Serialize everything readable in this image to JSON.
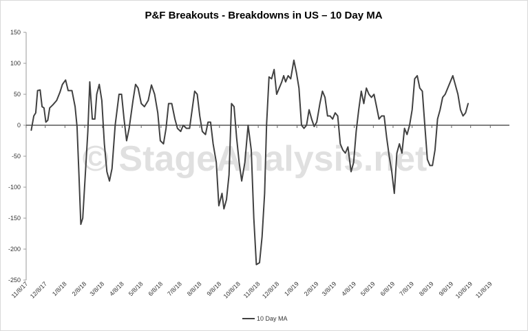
{
  "chart_data": {
    "type": "line",
    "title": "P&F Breakouts - Breakdowns in US – 10 Day MA",
    "watermark": "© StageAnalysis.net",
    "ylim": [
      -250,
      150
    ],
    "yticks": [
      150,
      100,
      50,
      0,
      -50,
      -100,
      -150,
      -200,
      -250
    ],
    "xlim": [
      "2017-11-08",
      "2019-12-08"
    ],
    "xticks": [
      "11/8/17",
      "12/8/17",
      "1/8/18",
      "2/8/18",
      "3/8/18",
      "4/8/18",
      "5/8/18",
      "6/8/18",
      "7/8/18",
      "8/8/18",
      "9/8/18",
      "10/8/18",
      "11/8/18",
      "12/8/18",
      "1/8/19",
      "2/8/19",
      "3/8/19",
      "4/8/19",
      "5/8/19",
      "6/8/19",
      "7/8/19",
      "8/8/19",
      "9/8/19",
      "10/8/19",
      "11/8/19"
    ],
    "xtick_dates": [
      "2017-11-08",
      "2017-12-08",
      "2018-01-08",
      "2018-02-08",
      "2018-03-08",
      "2018-04-08",
      "2018-05-08",
      "2018-06-08",
      "2018-07-08",
      "2018-08-08",
      "2018-09-08",
      "2018-10-08",
      "2018-11-08",
      "2018-12-08",
      "2019-01-08",
      "2019-02-08",
      "2019-03-08",
      "2019-04-08",
      "2019-05-08",
      "2019-06-08",
      "2019-07-08",
      "2019-08-08",
      "2019-09-08",
      "2019-10-08",
      "2019-11-08"
    ],
    "grid": false,
    "legend_position": "bottom",
    "series": [
      {
        "name": "10 Day MA",
        "color": "#404040",
        "points": [
          [
            "2017-11-16",
            -8
          ],
          [
            "2017-11-20",
            15
          ],
          [
            "2017-11-23",
            20
          ],
          [
            "2017-11-26",
            56
          ],
          [
            "2017-11-30",
            57
          ],
          [
            "2017-12-03",
            30
          ],
          [
            "2017-12-06",
            28
          ],
          [
            "2017-12-09",
            5
          ],
          [
            "2017-12-12",
            8
          ],
          [
            "2017-12-15",
            28
          ],
          [
            "2017-12-20",
            33
          ],
          [
            "2017-12-26",
            40
          ],
          [
            "2017-12-31",
            53
          ],
          [
            "2018-01-04",
            66
          ],
          [
            "2018-01-09",
            73
          ],
          [
            "2018-01-13",
            56
          ],
          [
            "2018-01-19",
            56
          ],
          [
            "2018-01-24",
            30
          ],
          [
            "2018-01-27",
            -2
          ],
          [
            "2018-01-30",
            -80
          ],
          [
            "2018-02-02",
            -160
          ],
          [
            "2018-02-05",
            -150
          ],
          [
            "2018-02-09",
            -80
          ],
          [
            "2018-02-13",
            -10
          ],
          [
            "2018-02-16",
            70
          ],
          [
            "2018-02-20",
            10
          ],
          [
            "2018-02-24",
            10
          ],
          [
            "2018-02-27",
            50
          ],
          [
            "2018-03-03",
            66
          ],
          [
            "2018-03-07",
            40
          ],
          [
            "2018-03-11",
            -30
          ],
          [
            "2018-03-15",
            -75
          ],
          [
            "2018-03-19",
            -90
          ],
          [
            "2018-03-23",
            -70
          ],
          [
            "2018-03-28",
            0
          ],
          [
            "2018-04-03",
            50
          ],
          [
            "2018-04-07",
            50
          ],
          [
            "2018-04-11",
            10
          ],
          [
            "2018-04-15",
            -25
          ],
          [
            "2018-04-19",
            -5
          ],
          [
            "2018-04-25",
            40
          ],
          [
            "2018-04-29",
            66
          ],
          [
            "2018-05-03",
            60
          ],
          [
            "2018-05-08",
            35
          ],
          [
            "2018-05-13",
            30
          ],
          [
            "2018-05-19",
            40
          ],
          [
            "2018-05-24",
            65
          ],
          [
            "2018-05-29",
            50
          ],
          [
            "2018-06-03",
            20
          ],
          [
            "2018-06-07",
            -25
          ],
          [
            "2018-06-12",
            -30
          ],
          [
            "2018-06-16",
            -5
          ],
          [
            "2018-06-20",
            35
          ],
          [
            "2018-06-25",
            35
          ],
          [
            "2018-06-30",
            10
          ],
          [
            "2018-07-04",
            -5
          ],
          [
            "2018-07-09",
            -10
          ],
          [
            "2018-07-13",
            0
          ],
          [
            "2018-07-18",
            -5
          ],
          [
            "2018-07-23",
            -5
          ],
          [
            "2018-07-27",
            25
          ],
          [
            "2018-07-31",
            55
          ],
          [
            "2018-08-04",
            50
          ],
          [
            "2018-08-08",
            15
          ],
          [
            "2018-08-12",
            -10
          ],
          [
            "2018-08-17",
            -15
          ],
          [
            "2018-08-21",
            5
          ],
          [
            "2018-08-25",
            5
          ],
          [
            "2018-08-29",
            -30
          ],
          [
            "2018-09-03",
            -60
          ],
          [
            "2018-09-07",
            -130
          ],
          [
            "2018-09-12",
            -110
          ],
          [
            "2018-09-15",
            -135
          ],
          [
            "2018-09-19",
            -120
          ],
          [
            "2018-09-23",
            -80
          ],
          [
            "2018-09-27",
            35
          ],
          [
            "2018-10-01",
            30
          ],
          [
            "2018-10-05",
            -20
          ],
          [
            "2018-10-09",
            -60
          ],
          [
            "2018-10-13",
            -90
          ],
          [
            "2018-10-18",
            -60
          ],
          [
            "2018-10-23",
            0
          ],
          [
            "2018-10-28",
            -40
          ],
          [
            "2018-11-01",
            -150
          ],
          [
            "2018-11-05",
            -225
          ],
          [
            "2018-11-10",
            -222
          ],
          [
            "2018-11-14",
            -180
          ],
          [
            "2018-11-18",
            -110
          ],
          [
            "2018-11-21",
            0
          ],
          [
            "2018-11-25",
            78
          ],
          [
            "2018-11-29",
            75
          ],
          [
            "2018-12-03",
            90
          ],
          [
            "2018-12-07",
            50
          ],
          [
            "2018-12-11",
            60
          ],
          [
            "2018-12-15",
            70
          ],
          [
            "2018-12-18",
            80
          ],
          [
            "2018-12-21",
            70
          ],
          [
            "2018-12-25",
            80
          ],
          [
            "2018-12-29",
            75
          ],
          [
            "2019-01-03",
            105
          ],
          [
            "2019-01-07",
            85
          ],
          [
            "2019-01-11",
            60
          ],
          [
            "2019-01-15",
            0
          ],
          [
            "2019-01-19",
            -5
          ],
          [
            "2019-01-23",
            0
          ],
          [
            "2019-01-27",
            25
          ],
          [
            "2019-01-31",
            10
          ],
          [
            "2019-02-04",
            -2
          ],
          [
            "2019-02-08",
            5
          ],
          [
            "2019-02-13",
            35
          ],
          [
            "2019-02-17",
            55
          ],
          [
            "2019-02-21",
            45
          ],
          [
            "2019-02-25",
            15
          ],
          [
            "2019-03-01",
            15
          ],
          [
            "2019-03-05",
            10
          ],
          [
            "2019-03-09",
            20
          ],
          [
            "2019-03-13",
            15
          ],
          [
            "2019-03-17",
            -30
          ],
          [
            "2019-03-21",
            -40
          ],
          [
            "2019-03-25",
            -45
          ],
          [
            "2019-03-29",
            -35
          ],
          [
            "2019-04-03",
            -75
          ],
          [
            "2019-04-07",
            -60
          ],
          [
            "2019-04-11",
            -10
          ],
          [
            "2019-04-15",
            25
          ],
          [
            "2019-04-19",
            55
          ],
          [
            "2019-04-23",
            35
          ],
          [
            "2019-04-27",
            60
          ],
          [
            "2019-05-01",
            50
          ],
          [
            "2019-05-05",
            45
          ],
          [
            "2019-05-09",
            50
          ],
          [
            "2019-05-13",
            30
          ],
          [
            "2019-05-17",
            10
          ],
          [
            "2019-05-21",
            15
          ],
          [
            "2019-05-25",
            15
          ],
          [
            "2019-05-29",
            -20
          ],
          [
            "2019-06-02",
            -50
          ],
          [
            "2019-06-06",
            -75
          ],
          [
            "2019-06-10",
            -110
          ],
          [
            "2019-06-14",
            -45
          ],
          [
            "2019-06-18",
            -30
          ],
          [
            "2019-06-22",
            -45
          ],
          [
            "2019-06-26",
            -5
          ],
          [
            "2019-06-30",
            -15
          ],
          [
            "2019-07-04",
            0
          ],
          [
            "2019-07-08",
            25
          ],
          [
            "2019-07-12",
            75
          ],
          [
            "2019-07-16",
            80
          ],
          [
            "2019-07-20",
            60
          ],
          [
            "2019-07-24",
            55
          ],
          [
            "2019-07-28",
            0
          ],
          [
            "2019-08-01",
            -55
          ],
          [
            "2019-08-05",
            -65
          ],
          [
            "2019-08-09",
            -65
          ],
          [
            "2019-08-13",
            -40
          ],
          [
            "2019-08-17",
            10
          ],
          [
            "2019-08-21",
            25
          ],
          [
            "2019-08-25",
            45
          ],
          [
            "2019-08-29",
            50
          ],
          [
            "2019-09-02",
            60
          ],
          [
            "2019-09-06",
            70
          ],
          [
            "2019-09-10",
            80
          ],
          [
            "2019-09-14",
            65
          ],
          [
            "2019-09-18",
            50
          ],
          [
            "2019-09-22",
            25
          ],
          [
            "2019-09-26",
            15
          ],
          [
            "2019-09-30",
            20
          ],
          [
            "2019-10-04",
            35
          ]
        ]
      }
    ]
  }
}
